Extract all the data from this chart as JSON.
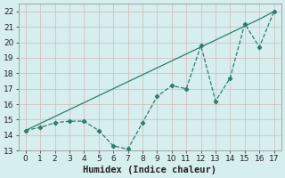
{
  "xlabel": "Humidex (Indice chaleur)",
  "x_values": [
    0,
    1,
    2,
    3,
    4,
    5,
    6,
    7,
    8,
    9,
    10,
    11,
    12,
    13,
    14,
    15,
    16,
    17
  ],
  "y_zigzag": [
    14.3,
    14.5,
    14.8,
    14.9,
    14.9,
    14.3,
    13.3,
    13.1,
    14.8,
    16.5,
    17.2,
    17.0,
    19.8,
    16.2,
    17.7,
    21.2,
    19.7,
    22.0
  ],
  "y_linear": [
    14.3,
    14.75,
    15.2,
    15.65,
    16.1,
    16.55,
    17.0,
    17.45,
    17.9,
    18.35,
    18.8,
    19.25,
    19.7,
    20.15,
    20.6,
    21.05,
    21.5,
    22.0
  ],
  "line_color": "#2e7d6e",
  "bg_color": "#d6eeed",
  "grid_major_color": "#c0d8d5",
  "grid_minor_color": "#d0e5e3",
  "ylim": [
    13,
    22.5
  ],
  "xlim": [
    -0.5,
    17.5
  ],
  "yticks": [
    13,
    14,
    15,
    16,
    17,
    18,
    19,
    20,
    21,
    22
  ],
  "xticks": [
    0,
    1,
    2,
    3,
    4,
    5,
    6,
    7,
    8,
    9,
    10,
    11,
    12,
    13,
    14,
    15,
    16,
    17
  ],
  "tick_fontsize": 6.5,
  "xlabel_fontsize": 7.5
}
